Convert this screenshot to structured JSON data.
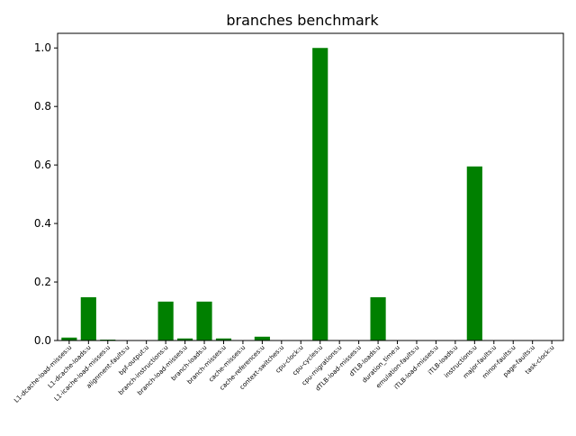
{
  "chart_data": {
    "type": "bar",
    "title": "branches benchmark",
    "xlabel": "",
    "ylabel": "",
    "ylim": [
      0,
      1.05
    ],
    "yticks": [
      0.0,
      0.2,
      0.4,
      0.6,
      0.8,
      1.0
    ],
    "ytick_labels": [
      "0.0",
      "0.2",
      "0.4",
      "0.6",
      "0.8",
      "1.0"
    ],
    "bar_color": "#008000",
    "grid": false,
    "categories": [
      "L1-dcache-load-misses:u",
      "L1-dcache-loads:u",
      "L1-icache-load-misses:u",
      "alignment-faults:u",
      "bpf-output:u",
      "branch-instructions:u",
      "branch-load-misses:u",
      "branch-loads:u",
      "branch-misses:u",
      "cache-misses:u",
      "cache-references:u",
      "context-switches:u",
      "cpu-clock:u",
      "cpu-cycles:u",
      "cpu-migrations:u",
      "dTLB-load-misses:u",
      "dTLB-loads:u",
      "duration_time:u",
      "emulation-faults:u",
      "iTLB-load-misses:u",
      "iTLB-loads:u",
      "instructions:u",
      "major-faults:u",
      "minor-faults:u",
      "page-faults:u",
      "task-clock:u"
    ],
    "values": [
      0.01,
      0.148,
      0.003,
      0,
      0,
      0.133,
      0.007,
      0.133,
      0.007,
      0,
      0.013,
      0,
      0,
      1.0,
      0,
      0,
      0.148,
      0,
      0,
      0,
      0,
      0.595,
      0,
      0,
      0,
      0
    ]
  }
}
